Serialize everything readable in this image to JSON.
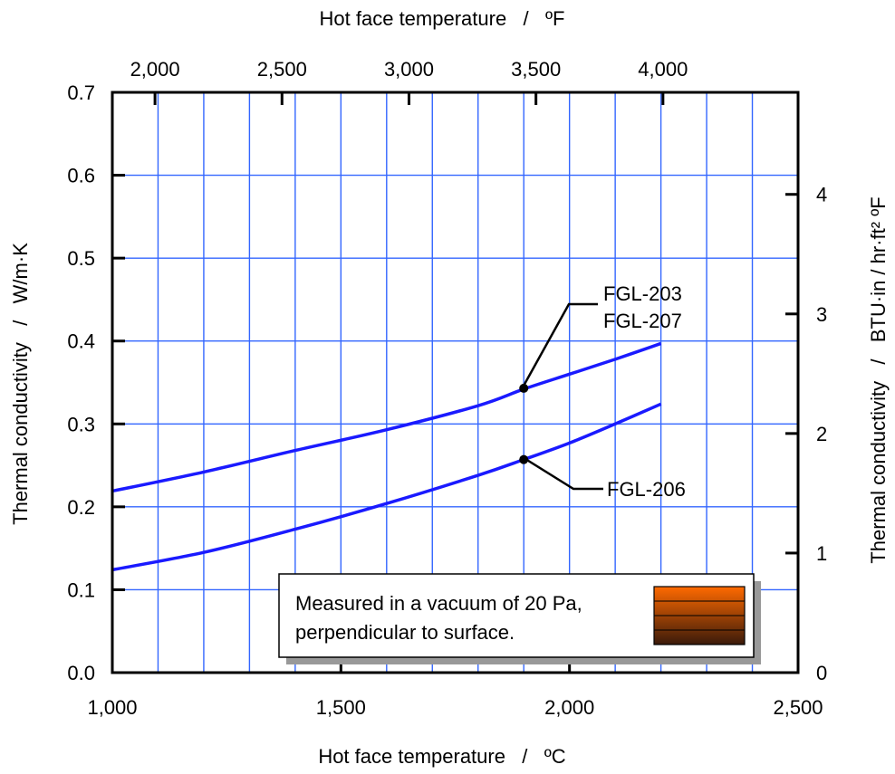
{
  "chart_data": {
    "type": "line",
    "x_bottom": {
      "label": "Hot face temperature   /   ºC",
      "range": [
        1000,
        2500
      ],
      "ticks": [
        1000,
        1500,
        2000,
        2500
      ],
      "tick_labels": [
        "1,000",
        "1,500",
        "2,000",
        "2,500"
      ]
    },
    "x_top": {
      "label": "Hot face temperature   /   ºF",
      "ticks": [
        2000,
        2500,
        3000,
        3500,
        4000
      ],
      "tick_labels": [
        "2,000",
        "2,500",
        "3,000",
        "3,500",
        "4,000"
      ]
    },
    "y_left": {
      "label": "Thermal conductivity   /   W/m·K",
      "range": [
        0,
        0.7
      ],
      "ticks": [
        0,
        0.1,
        0.2,
        0.3,
        0.4,
        0.5,
        0.6,
        0.7
      ],
      "tick_labels": [
        "0.0",
        "0.1",
        "0.2",
        "0.3",
        "0.4",
        "0.5",
        "0.6",
        "0.7"
      ]
    },
    "y_right": {
      "label": "Thermal conductivity   /   BTU·in / hr·ft² ºF",
      "ticks": [
        0,
        1,
        2,
        3,
        4
      ],
      "tick_labels": [
        "0",
        "1",
        "2",
        "3",
        "4"
      ]
    },
    "grid": true,
    "series": [
      {
        "name": "FGL-203\nFGL-207",
        "label_lines": [
          "FGL-203",
          "FGL-207"
        ],
        "color": "#1a1aff",
        "x": [
          1000,
          1200,
          1400,
          1600,
          1800,
          1900,
          2000,
          2100,
          2200
        ],
        "y": [
          0.219,
          0.242,
          0.268,
          0.293,
          0.322,
          0.342,
          0.36,
          0.378,
          0.397
        ],
        "marker_x": 1900,
        "marker_y": 0.343
      },
      {
        "name": "FGL-206",
        "label_lines": [
          "FGL-206"
        ],
        "color": "#1a1aff",
        "x": [
          1000,
          1200,
          1400,
          1600,
          1800,
          1900,
          2000,
          2100,
          2200
        ],
        "y": [
          0.124,
          0.145,
          0.173,
          0.204,
          0.238,
          0.257,
          0.277,
          0.3,
          0.324
        ],
        "marker_x": 1900,
        "marker_y": 0.257
      }
    ],
    "annotation": {
      "lines": [
        "Measured in a vacuum of 20 Pa,",
        "perpendicular to surface."
      ]
    },
    "colors": {
      "grid": "#3366ff",
      "curve": "#1a1aff",
      "swatch_top": "#ff6a00",
      "swatch_bottom": "#3a1a0a"
    }
  }
}
